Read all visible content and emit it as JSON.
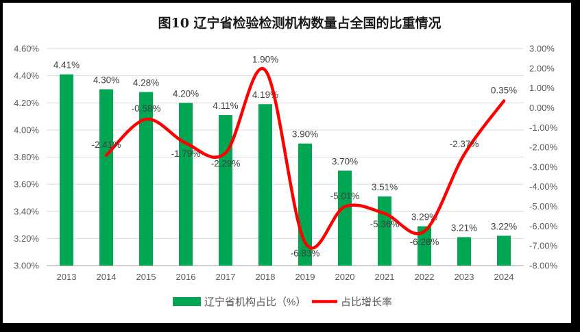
{
  "chart_data": {
    "type": "bar+line combo",
    "title": "图10 辽宁省检验检测机构数量占全国的比重情况",
    "categories": [
      "2013",
      "2014",
      "2015",
      "2016",
      "2017",
      "2018",
      "2019",
      "2020",
      "2021",
      "2022",
      "2023",
      "2024"
    ],
    "series": [
      {
        "name": "辽宁省机构占比（%）",
        "type": "bar",
        "axis": "left",
        "color": "#00A651",
        "values": [
          4.41,
          4.3,
          4.28,
          4.2,
          4.11,
          4.19,
          3.9,
          3.7,
          3.51,
          3.29,
          3.21,
          3.22
        ],
        "labels": [
          "4.41%",
          "4.30%",
          "4.28%",
          "4.20%",
          "4.11%",
          "4.19%",
          "3.90%",
          "3.70%",
          "3.51%",
          "3.29%",
          "3.21%",
          "3.22%"
        ]
      },
      {
        "name": "占比增长率",
        "type": "line",
        "axis": "right",
        "color": "#FF0000",
        "smooth": true,
        "values": [
          null,
          -2.41,
          -0.58,
          -1.79,
          -2.29,
          1.9,
          -6.83,
          -5.01,
          -5.36,
          -6.26,
          -2.37,
          0.35
        ],
        "labels": [
          null,
          "-2.41%",
          "-0.58%",
          "-1.79%",
          "-2.29%",
          "1.90%",
          "-6.83%",
          "-5.01%",
          "-5.36%",
          "-6.26%",
          "-2.37%",
          "0.35%"
        ],
        "label_placement": [
          null,
          "above",
          "above",
          "below",
          "below",
          "above",
          "below",
          "above",
          "below",
          "below",
          "above",
          "above"
        ]
      }
    ],
    "left_axis": {
      "min": 3.0,
      "max": 4.6,
      "step": 0.2,
      "ticks": [
        "4.60%",
        "4.40%",
        "4.20%",
        "4.00%",
        "3.80%",
        "3.60%",
        "3.40%",
        "3.20%",
        "3.00%"
      ]
    },
    "right_axis": {
      "min": -8.0,
      "max": 3.0,
      "step": 1.0,
      "ticks": [
        "3.00%",
        "2.00%",
        "1.00%",
        "0.00%",
        "-1.00%",
        "-2.00%",
        "-3.00%",
        "-4.00%",
        "-5.00%",
        "-6.00%",
        "-7.00%",
        "-8.00%"
      ]
    },
    "grid": true,
    "legend_position": "bottom",
    "colors": {
      "bar": "#00A651",
      "line": "#FF0000",
      "gridline": "#D9D9D9",
      "axis_line": "#BFBFBF",
      "axis_text": "#595959",
      "data_label_text": "#404040",
      "frame_border": "#000000"
    }
  }
}
